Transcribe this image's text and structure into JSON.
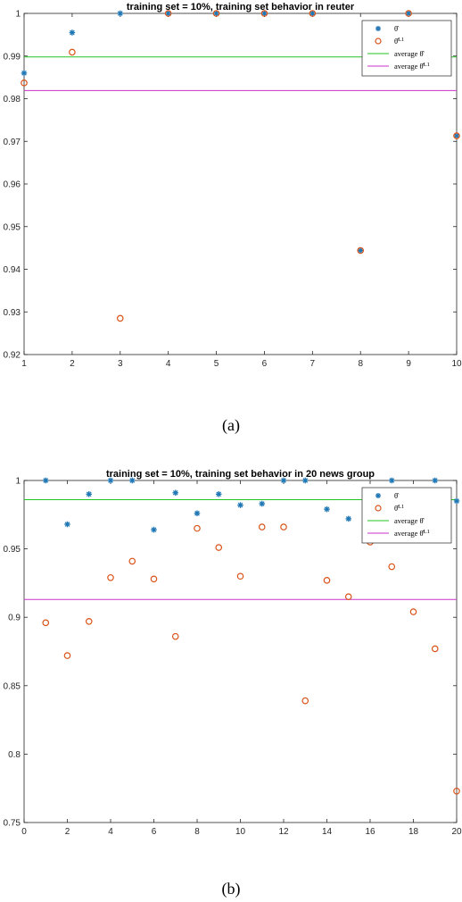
{
  "chart_data": [
    {
      "type": "scatter",
      "title": "training set = 10%, training set behavior in reuter",
      "caption": "(a)",
      "xlim": [
        1,
        10
      ],
      "ylim": [
        0.92,
        1.0
      ],
      "xticks": [
        1,
        2,
        3,
        4,
        5,
        6,
        7,
        8,
        9,
        10
      ],
      "xtick_labels": [
        "1",
        "2",
        "3",
        "4",
        "5",
        "6",
        "7",
        "8",
        "9",
        "10"
      ],
      "yticks": [
        0.92,
        0.93,
        0.94,
        0.95,
        0.96,
        0.97,
        0.98,
        0.99,
        1.0
      ],
      "ytick_labels": [
        "0.92",
        "0.93",
        "0.94",
        "0.95",
        "0.96",
        "0.97",
        "0.98",
        "0.99",
        "1"
      ],
      "legend_position": "top-right",
      "series": [
        {
          "name": "θ̂",
          "marker": "asterisk",
          "color": "#1f77b4",
          "x": [
            1,
            2,
            3,
            4,
            5,
            6,
            7,
            8,
            9,
            10
          ],
          "y": [
            0.986,
            0.9955,
            1.0,
            1.0,
            1.0,
            1.0,
            1.0,
            0.9444,
            1.0,
            0.9713
          ]
        },
        {
          "name": "θ̂^L1",
          "marker": "circle",
          "color": "#d95319",
          "x": [
            1,
            2,
            3,
            4,
            5,
            6,
            7,
            8,
            9,
            10
          ],
          "y": [
            0.9837,
            0.9909,
            0.9285,
            1.0,
            1.0,
            1.0,
            1.0,
            0.9444,
            1.0,
            0.9713
          ]
        }
      ],
      "lines": [
        {
          "name": "average θ̂",
          "y": 0.9898,
          "color": "#22c422"
        },
        {
          "name": "average θ̂^L1",
          "y": 0.9819,
          "color": "#c832c8"
        }
      ]
    },
    {
      "type": "scatter",
      "title": "training set = 10%, training set behavior in 20 news group",
      "caption": "(b)",
      "xlim": [
        0,
        20
      ],
      "ylim": [
        0.75,
        1.0
      ],
      "xticks": [
        0,
        2,
        4,
        6,
        8,
        10,
        12,
        14,
        16,
        18,
        20
      ],
      "xtick_labels": [
        "0",
        "2",
        "4",
        "6",
        "8",
        "10",
        "12",
        "14",
        "16",
        "18",
        "20"
      ],
      "yticks": [
        0.75,
        0.8,
        0.85,
        0.9,
        0.95,
        1.0
      ],
      "ytick_labels": [
        "0.75",
        "0.8",
        "0.85",
        "0.9",
        "0.95",
        "1"
      ],
      "legend_position": "top-right",
      "series": [
        {
          "name": "θ̂",
          "marker": "asterisk",
          "color": "#1f77b4",
          "x": [
            1,
            2,
            3,
            4,
            5,
            6,
            7,
            8,
            9,
            10,
            11,
            12,
            13,
            14,
            15,
            16,
            17,
            18,
            19,
            20
          ],
          "y": [
            1.0,
            0.968,
            0.99,
            1.0,
            1.0,
            0.964,
            0.991,
            0.976,
            0.99,
            0.982,
            0.983,
            1.0,
            1.0,
            0.979,
            0.972,
            0.958,
            1.0,
            0.99,
            1.0,
            0.985
          ]
        },
        {
          "name": "θ̂^L1",
          "marker": "circle",
          "color": "#d95319",
          "x": [
            1,
            2,
            3,
            4,
            5,
            6,
            7,
            8,
            9,
            10,
            11,
            12,
            13,
            14,
            15,
            16,
            17,
            18,
            19,
            20
          ],
          "y": [
            0.896,
            0.872,
            0.897,
            0.929,
            0.941,
            0.928,
            0.886,
            0.965,
            0.951,
            0.93,
            0.966,
            0.966,
            0.839,
            0.927,
            0.915,
            0.955,
            0.937,
            0.904,
            0.877,
            0.773
          ]
        }
      ],
      "lines": [
        {
          "name": "average θ̂",
          "y": 0.986,
          "color": "#22c422"
        },
        {
          "name": "average θ̂^L1",
          "y": 0.913,
          "color": "#c832c8"
        }
      ]
    }
  ]
}
